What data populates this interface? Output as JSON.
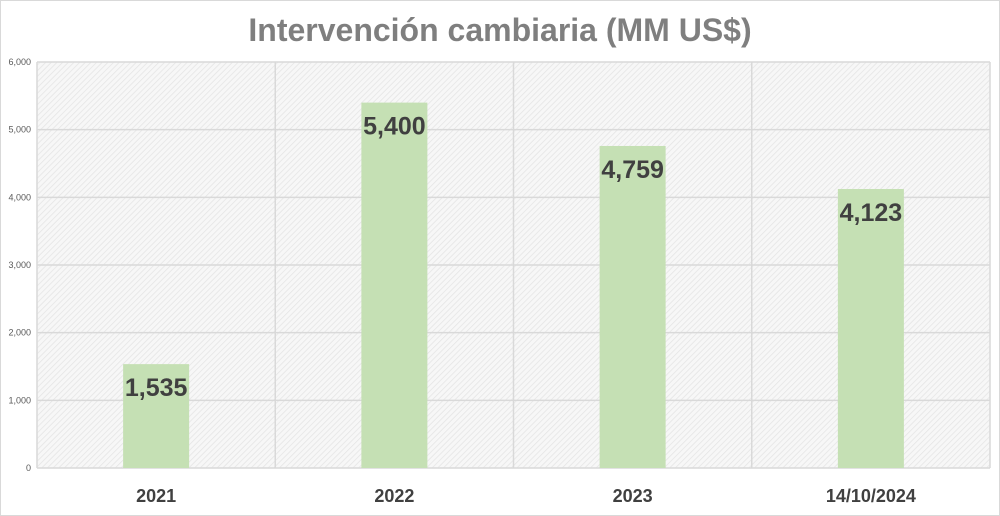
{
  "chart_data": {
    "type": "bar",
    "title": "Intervención cambiaria (MM US$)",
    "categories": [
      "2021",
      "2022",
      "2023",
      "14/10/2024"
    ],
    "values": [
      1535,
      5400,
      4759,
      4123
    ],
    "data_labels": [
      "1,535",
      "5,400",
      "4,759",
      "4,123"
    ],
    "ylim": [
      0,
      6000
    ],
    "yticks": [
      "0",
      "1,000",
      "2,000",
      "3,000",
      "4,000",
      "5,000",
      "6,000"
    ],
    "grid": true,
    "bar_color": "#c5e0b4",
    "label_color": "#404040"
  }
}
